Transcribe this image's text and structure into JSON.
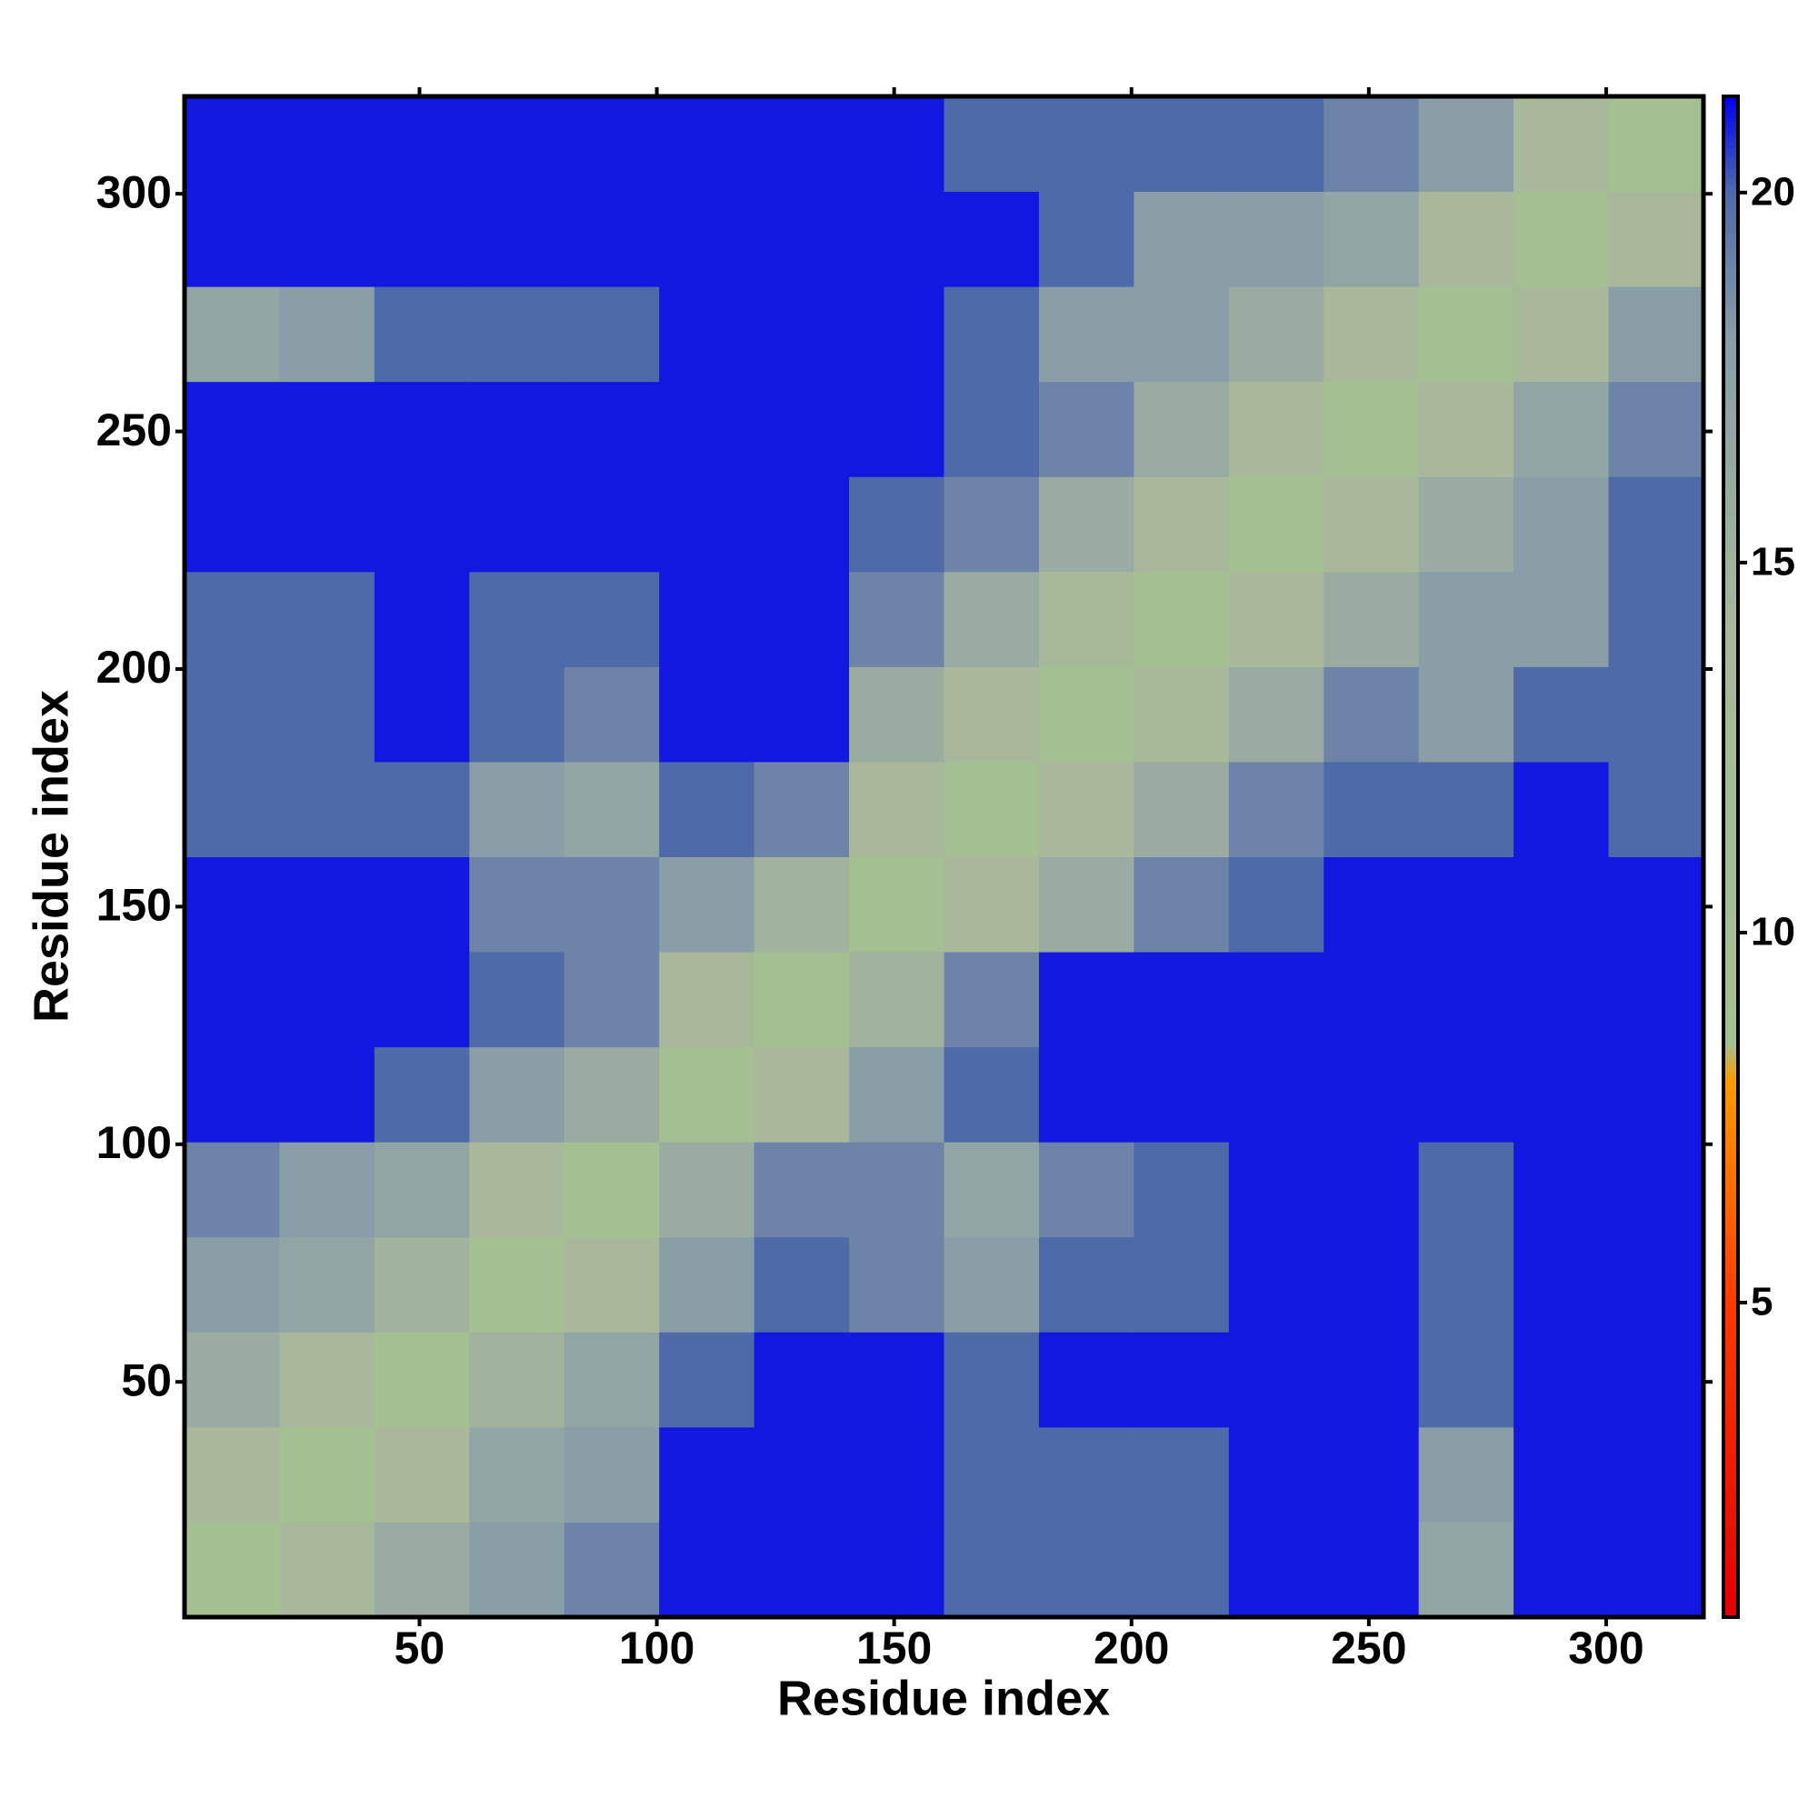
{
  "chart_data": {
    "type": "heatmap",
    "xlabel": "Residue index",
    "ylabel": "Residue index",
    "x": [
      10.5,
      30.5,
      50.5,
      70.5,
      90.5,
      110.5,
      130.5,
      150.5,
      170.5,
      190.5,
      210.5,
      230.5,
      250.5,
      270.5,
      290.5,
      310.5
    ],
    "y": [
      10.5,
      30.5,
      50.5,
      70.5,
      90.5,
      110.5,
      130.5,
      150.5,
      170.5,
      190.5,
      210.5,
      230.5,
      250.5,
      270.5,
      290.5,
      310.5
    ],
    "z": [
      [
        9,
        14,
        16,
        18,
        19,
        21,
        21,
        21,
        20,
        20,
        20,
        21,
        21,
        17,
        21,
        21
      ],
      [
        14,
        9,
        14,
        17,
        18,
        21,
        21,
        21,
        20,
        20,
        20,
        21,
        21,
        18,
        21,
        21
      ],
      [
        16,
        14,
        9,
        15,
        17,
        20,
        21,
        21,
        20,
        21,
        21,
        21,
        21,
        20,
        21,
        21
      ],
      [
        18,
        17,
        15,
        9,
        14,
        18,
        20,
        19,
        18,
        20,
        20,
        21,
        21,
        20,
        21,
        21
      ],
      [
        19,
        18,
        17,
        14,
        9,
        16,
        19,
        19,
        17,
        19,
        20,
        21,
        21,
        20,
        21,
        21
      ],
      [
        21,
        21,
        20,
        18,
        16,
        9,
        14,
        18,
        20,
        21,
        21,
        21,
        21,
        21,
        21,
        21
      ],
      [
        21,
        21,
        21,
        20,
        19,
        14,
        9,
        15,
        19,
        21,
        21,
        21,
        21,
        21,
        21,
        21
      ],
      [
        21,
        21,
        21,
        19,
        19,
        18,
        15,
        9,
        14,
        16,
        19,
        20,
        21,
        21,
        21,
        21
      ],
      [
        20,
        20,
        20,
        18,
        17,
        20,
        19,
        14,
        9,
        14,
        16,
        19,
        20,
        20,
        21,
        20
      ],
      [
        20,
        20,
        21,
        20,
        19,
        21,
        21,
        16,
        14,
        9,
        13,
        16,
        19,
        18,
        20,
        20
      ],
      [
        20,
        20,
        21,
        20,
        20,
        21,
        21,
        19,
        16,
        13,
        9,
        14,
        16,
        18,
        18,
        20
      ],
      [
        21,
        21,
        21,
        21,
        21,
        21,
        21,
        20,
        19,
        16,
        14,
        9,
        14,
        16,
        18,
        20
      ],
      [
        21,
        21,
        21,
        21,
        21,
        21,
        21,
        21,
        20,
        19,
        16,
        14,
        9,
        14,
        17,
        19
      ],
      [
        17,
        18,
        20,
        20,
        20,
        21,
        21,
        21,
        20,
        18,
        18,
        16,
        14,
        9,
        14,
        18
      ],
      [
        21,
        21,
        21,
        21,
        21,
        21,
        21,
        21,
        21,
        20,
        18,
        18,
        17,
        14,
        9,
        14
      ],
      [
        21,
        21,
        21,
        21,
        21,
        21,
        21,
        21,
        20,
        20,
        20,
        20,
        19,
        18,
        14,
        9
      ]
    ],
    "xlim": [
      0.5,
      320.5
    ],
    "ylim": [
      0.5,
      320.5
    ],
    "xticks": [
      50,
      100,
      150,
      200,
      250,
      300
    ],
    "yticks": [
      50,
      100,
      150,
      200,
      250,
      300
    ],
    "clim": [
      0.75,
      21.3
    ],
    "cticks": [
      5,
      10,
      15,
      20
    ],
    "colorscale": [
      [
        0.75,
        "#e00000"
      ],
      [
        5,
        "#ff3a00"
      ],
      [
        8,
        "#ff9a00"
      ],
      [
        8.5,
        "#a4c090"
      ],
      [
        14,
        "#a9b89a"
      ],
      [
        18,
        "#8a9ea8"
      ],
      [
        20,
        "#4f6aa8"
      ],
      [
        21.3,
        "#0000f0"
      ]
    ]
  }
}
